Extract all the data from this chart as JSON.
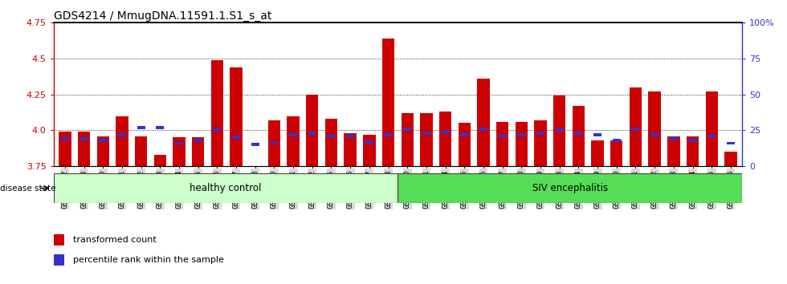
{
  "title": "GDS4214 / MmugDNA.11591.1.S1_s_at",
  "samples": [
    "GSM347802",
    "GSM347803",
    "GSM347810",
    "GSM347811",
    "GSM347812",
    "GSM347813",
    "GSM347814",
    "GSM347815",
    "GSM347816",
    "GSM347817",
    "GSM347818",
    "GSM347820",
    "GSM347821",
    "GSM347822",
    "GSM347825",
    "GSM347826",
    "GSM347827",
    "GSM347828",
    "GSM347800",
    "GSM347801",
    "GSM347804",
    "GSM347805",
    "GSM347806",
    "GSM347807",
    "GSM347808",
    "GSM347809",
    "GSM347823",
    "GSM347824",
    "GSM347829",
    "GSM347830",
    "GSM347831",
    "GSM347832",
    "GSM347833",
    "GSM347834",
    "GSM347835",
    "GSM347836"
  ],
  "red_values": [
    3.99,
    3.99,
    3.96,
    4.1,
    3.96,
    3.83,
    3.95,
    3.95,
    4.49,
    4.44,
    3.65,
    4.07,
    4.1,
    4.25,
    4.08,
    3.98,
    3.97,
    4.64,
    4.12,
    4.12,
    4.13,
    4.05,
    4.36,
    4.06,
    4.06,
    4.07,
    4.24,
    4.17,
    3.93,
    3.93,
    4.3,
    4.27,
    3.96,
    3.96,
    4.27,
    3.85
  ],
  "blue_values": [
    3.94,
    3.94,
    3.93,
    3.97,
    4.02,
    4.02,
    3.91,
    3.93,
    4.01,
    3.95,
    3.9,
    3.91,
    3.97,
    3.98,
    3.96,
    3.96,
    3.92,
    3.97,
    4.01,
    3.98,
    3.99,
    3.97,
    4.01,
    3.96,
    3.97,
    3.98,
    4.0,
    3.98,
    3.97,
    3.93,
    4.01,
    3.97,
    3.94,
    3.93,
    3.96,
    3.91
  ],
  "healthy_control_count": 18,
  "ylim_left": [
    3.75,
    4.75
  ],
  "ylim_right": [
    0,
    100
  ],
  "yticks_left": [
    3.75,
    4.0,
    4.25,
    4.5,
    4.75
  ],
  "yticks_right": [
    0,
    25,
    50,
    75,
    100
  ],
  "ytick_labels_right": [
    "0",
    "25",
    "50",
    "75",
    "100%"
  ],
  "bar_color": "#cc0000",
  "blue_color": "#3333cc",
  "healthy_bg": "#ccffcc",
  "siv_bg": "#55dd55",
  "tick_label_bg": "#d8d8d8",
  "title_fontsize": 10,
  "tick_fontsize": 6.5,
  "bar_width": 0.65
}
